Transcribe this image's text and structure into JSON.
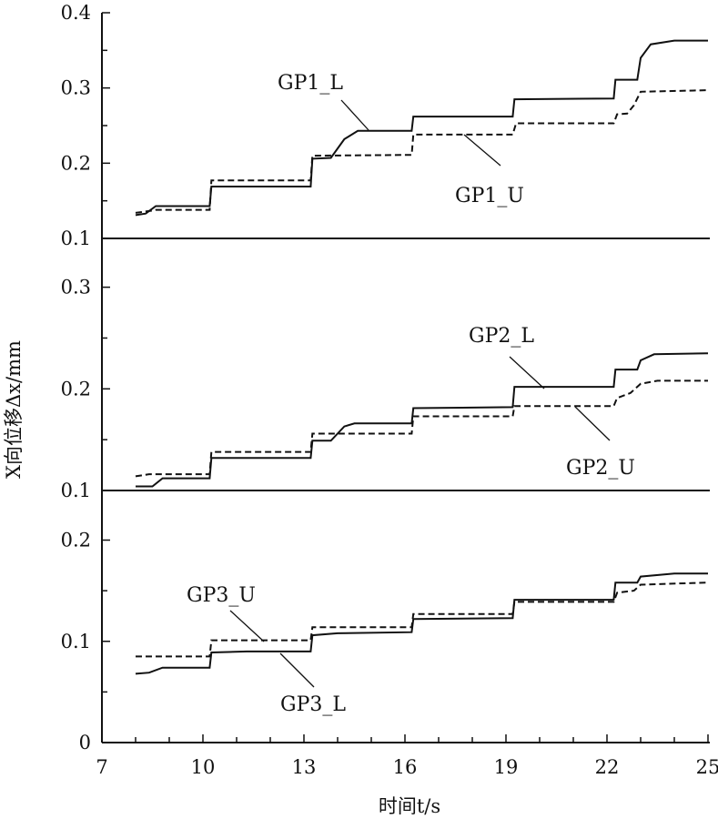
{
  "chart_data": [
    {
      "type": "line",
      "panel": "top",
      "xlim": [
        7,
        25
      ],
      "ylim": [
        0.1,
        0.4
      ],
      "yticks": [
        "0.1",
        "0.2",
        "0.3",
        "0.4"
      ],
      "series": [
        {
          "name": "GP1_L",
          "style": "solid",
          "points": [
            [
              8,
              0.131
            ],
            [
              8.3,
              0.133
            ],
            [
              8.6,
              0.143
            ],
            [
              10.2,
              0.143
            ],
            [
              10.25,
              0.169
            ],
            [
              13.2,
              0.169
            ],
            [
              13.25,
              0.206
            ],
            [
              13.8,
              0.207
            ],
            [
              14.2,
              0.232
            ],
            [
              14.6,
              0.243
            ],
            [
              16.2,
              0.243
            ],
            [
              16.25,
              0.262
            ],
            [
              19.2,
              0.262
            ],
            [
              19.25,
              0.285
            ],
            [
              22.2,
              0.286
            ],
            [
              22.25,
              0.311
            ],
            [
              22.9,
              0.311
            ],
            [
              23,
              0.34
            ],
            [
              23.3,
              0.358
            ],
            [
              24,
              0.363
            ],
            [
              25,
              0.363
            ]
          ]
        },
        {
          "name": "GP1_U",
          "style": "dashed",
          "points": [
            [
              8,
              0.134
            ],
            [
              8.5,
              0.137
            ],
            [
              8.6,
              0.138
            ],
            [
              10.2,
              0.138
            ],
            [
              10.25,
              0.177
            ],
            [
              13.2,
              0.177
            ],
            [
              13.25,
              0.21
            ],
            [
              16.2,
              0.211
            ],
            [
              16.25,
              0.238
            ],
            [
              19.2,
              0.238
            ],
            [
              19.3,
              0.253
            ],
            [
              22.2,
              0.253
            ],
            [
              22.3,
              0.265
            ],
            [
              22.6,
              0.266
            ],
            [
              22.8,
              0.277
            ],
            [
              23,
              0.295
            ],
            [
              25,
              0.297
            ]
          ]
        }
      ]
    },
    {
      "type": "line",
      "panel": "middle",
      "xlim": [
        7,
        25
      ],
      "ylim": [
        0.1,
        0.348
      ],
      "yticks": [
        "0.1",
        "0.2",
        "0.3"
      ],
      "series": [
        {
          "name": "GP2_L",
          "style": "solid",
          "points": [
            [
              8,
              0.104
            ],
            [
              8.5,
              0.104
            ],
            [
              8.8,
              0.112
            ],
            [
              10.2,
              0.112
            ],
            [
              10.25,
              0.132
            ],
            [
              13.2,
              0.132
            ],
            [
              13.25,
              0.149
            ],
            [
              13.8,
              0.149
            ],
            [
              14.2,
              0.163
            ],
            [
              14.5,
              0.166
            ],
            [
              16.2,
              0.166
            ],
            [
              16.25,
              0.181
            ],
            [
              19.2,
              0.182
            ],
            [
              19.25,
              0.202
            ],
            [
              22.2,
              0.202
            ],
            [
              22.25,
              0.219
            ],
            [
              22.9,
              0.219
            ],
            [
              23,
              0.228
            ],
            [
              23.4,
              0.234
            ],
            [
              25,
              0.235
            ]
          ]
        },
        {
          "name": "GP2_U",
          "style": "dashed",
          "points": [
            [
              8,
              0.114
            ],
            [
              8.4,
              0.116
            ],
            [
              10.2,
              0.116
            ],
            [
              10.25,
              0.138
            ],
            [
              13.2,
              0.138
            ],
            [
              13.25,
              0.156
            ],
            [
              16.2,
              0.156
            ],
            [
              16.25,
              0.173
            ],
            [
              19.2,
              0.173
            ],
            [
              19.25,
              0.183
            ],
            [
              22.2,
              0.183
            ],
            [
              22.3,
              0.191
            ],
            [
              22.7,
              0.196
            ],
            [
              23,
              0.205
            ],
            [
              23.5,
              0.208
            ],
            [
              25,
              0.208
            ]
          ]
        }
      ]
    },
    {
      "type": "line",
      "panel": "bottom",
      "xlim": [
        7,
        25
      ],
      "ylim": [
        0,
        0.249
      ],
      "yticks": [
        "0",
        "0.1",
        "0.2"
      ],
      "xticks": [
        "7",
        "10",
        "13",
        "16",
        "19",
        "22",
        "25"
      ],
      "series": [
        {
          "name": "GP3_L",
          "style": "solid",
          "points": [
            [
              8,
              0.068
            ],
            [
              8.4,
              0.069
            ],
            [
              8.8,
              0.074
            ],
            [
              10.2,
              0.074
            ],
            [
              10.25,
              0.089
            ],
            [
              11.3,
              0.09
            ],
            [
              13.2,
              0.09
            ],
            [
              13.25,
              0.106
            ],
            [
              14,
              0.108
            ],
            [
              16.2,
              0.109
            ],
            [
              16.25,
              0.122
            ],
            [
              19.2,
              0.123
            ],
            [
              19.25,
              0.141
            ],
            [
              22.2,
              0.141
            ],
            [
              22.25,
              0.158
            ],
            [
              22.9,
              0.158
            ],
            [
              23,
              0.164
            ],
            [
              24,
              0.167
            ],
            [
              25,
              0.167
            ]
          ]
        },
        {
          "name": "GP3_U",
          "style": "dashed",
          "points": [
            [
              8,
              0.085
            ],
            [
              10.2,
              0.085
            ],
            [
              10.25,
              0.101
            ],
            [
              13.2,
              0.101
            ],
            [
              13.25,
              0.114
            ],
            [
              16.2,
              0.114
            ],
            [
              16.25,
              0.127
            ],
            [
              19.2,
              0.127
            ],
            [
              19.25,
              0.139
            ],
            [
              22.2,
              0.139
            ],
            [
              22.3,
              0.148
            ],
            [
              22.8,
              0.15
            ],
            [
              23,
              0.156
            ],
            [
              25,
              0.158
            ]
          ]
        }
      ]
    }
  ],
  "labels": {
    "xlabel": "时间t/s",
    "ylabel": "X向位移Δx/mm"
  },
  "colors": {
    "line": "#111111",
    "background": "#ffffff"
  }
}
